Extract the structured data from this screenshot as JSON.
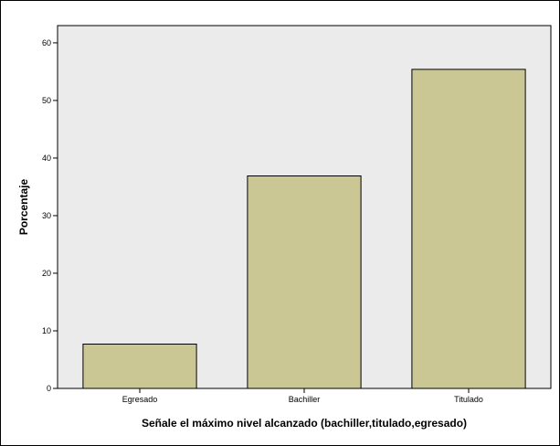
{
  "chart_data": {
    "type": "bar",
    "title": "",
    "xlabel": "Señale el máximo nivel alcanzado (bachiller,titulado,egresado)",
    "ylabel": "Porcentaje",
    "categories": [
      "Egresado",
      "Bachiller",
      "Titulado"
    ],
    "values": [
      7.7,
      36.9,
      55.4
    ],
    "ylim": [
      0,
      63
    ],
    "yticks": [
      "0",
      "10",
      "20",
      "30",
      "40",
      "50",
      "60"
    ],
    "grid": false,
    "legend": "none",
    "colors": {
      "bar_fill": "#cbc795",
      "bar_stroke": "#000000",
      "plot_background": "#ebebeb",
      "page_background": "#ffffff"
    }
  }
}
